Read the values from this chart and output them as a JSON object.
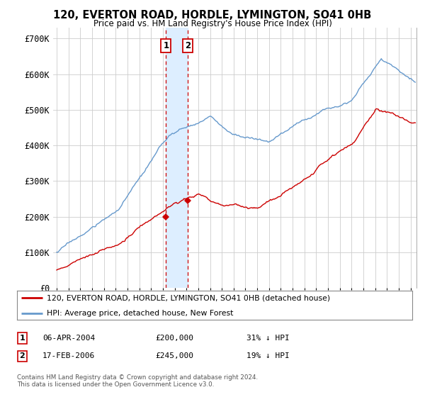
{
  "title": "120, EVERTON ROAD, HORDLE, LYMINGTON, SO41 0HB",
  "subtitle": "Price paid vs. HM Land Registry's House Price Index (HPI)",
  "ylabel_ticks": [
    "£0",
    "£100K",
    "£200K",
    "£300K",
    "£400K",
    "£500K",
    "£600K",
    "£700K"
  ],
  "ytick_values": [
    0,
    100000,
    200000,
    300000,
    400000,
    500000,
    600000,
    700000
  ],
  "ylim": [
    0,
    730000
  ],
  "xlim_start": 1994.7,
  "xlim_end": 2025.5,
  "sale1_x": 2004.27,
  "sale1_y": 200000,
  "sale2_x": 2006.12,
  "sale2_y": 245000,
  "sale1_label": "1",
  "sale2_label": "2",
  "red_color": "#cc0000",
  "blue_color": "#6699cc",
  "shade_color": "#ddeeff",
  "legend_red_label": "120, EVERTON ROAD, HORDLE, LYMINGTON, SO41 0HB (detached house)",
  "legend_blue_label": "HPI: Average price, detached house, New Forest",
  "table_row1": [
    "1",
    "06-APR-2004",
    "£200,000",
    "31% ↓ HPI"
  ],
  "table_row2": [
    "2",
    "17-FEB-2006",
    "£245,000",
    "19% ↓ HPI"
  ],
  "footnote": "Contains HM Land Registry data © Crown copyright and database right 2024.\nThis data is licensed under the Open Government Licence v3.0.",
  "background_color": "#ffffff",
  "grid_color": "#cccccc"
}
